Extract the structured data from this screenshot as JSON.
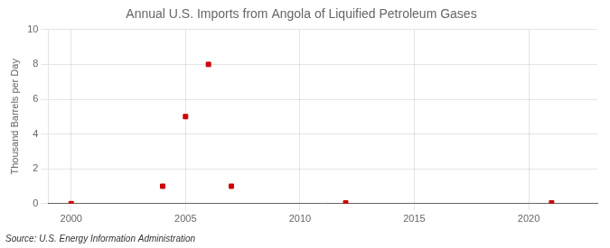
{
  "chart_data": {
    "type": "scatter",
    "title": "Annual U.S. Imports from Angola of Liquified Petroleum Gases",
    "ylabel": "Thousand Barrels per Day",
    "annotations": [
      "Source: U.S. Energy Information Administration"
    ],
    "x": [
      2000,
      2004,
      2005,
      2006,
      2007,
      2012,
      2021
    ],
    "values": [
      0,
      1,
      5,
      8,
      1,
      0.04,
      0.04
    ],
    "color": "#cc0000",
    "marker": "square",
    "xlim": [
      1999,
      2023
    ],
    "ylim": [
      0,
      10
    ],
    "xticks": [
      2000,
      2005,
      2010,
      2015,
      2020
    ],
    "yticks": [
      0,
      2,
      4,
      6,
      8,
      10
    ],
    "grid": true
  }
}
